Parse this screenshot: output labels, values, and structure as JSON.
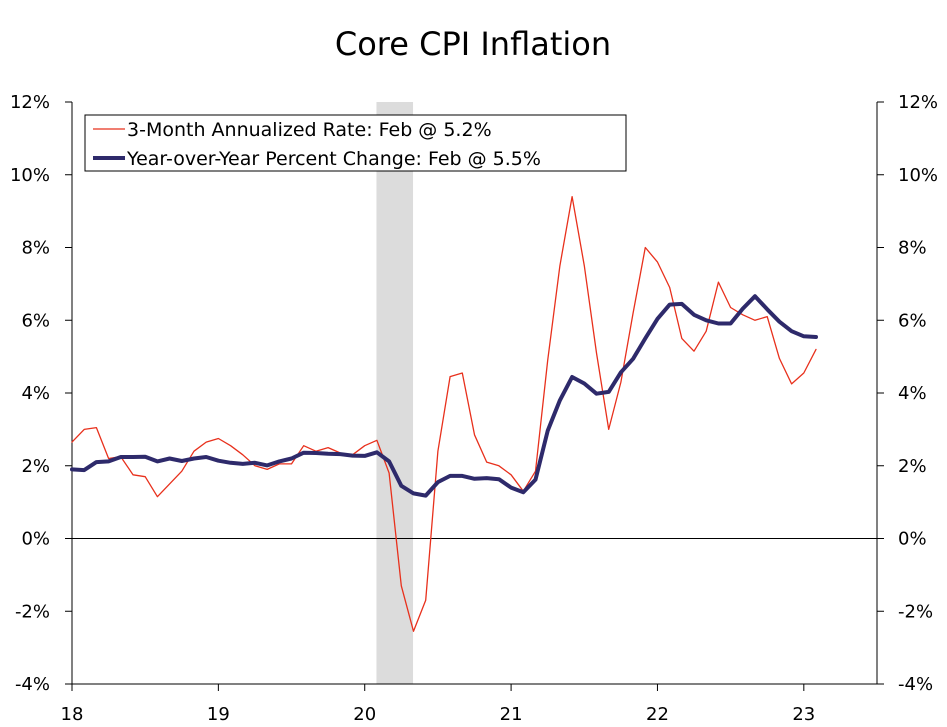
{
  "chart_data": {
    "type": "line",
    "title": "Core CPI Inflation",
    "x_start": {
      "year": 2018,
      "month": 1
    },
    "x_range_years": [
      2018,
      2023.5
    ],
    "x_tick_labels": [
      "18",
      "19",
      "20",
      "21",
      "22",
      "23"
    ],
    "x_tick_years": [
      2018,
      2019,
      2020,
      2021,
      2022,
      2023
    ],
    "ylim": [
      -4,
      12
    ],
    "y_ticks": [
      -4,
      -2,
      0,
      2,
      4,
      6,
      8,
      10,
      12
    ],
    "y_tick_labels": [
      "-4%",
      "-2%",
      "0%",
      "2%",
      "4%",
      "6%",
      "8%",
      "10%",
      "12%"
    ],
    "recession_shading": {
      "start": 2020.08,
      "end": 2020.33
    },
    "legend_position": "top-left",
    "colors": {
      "three_month": "#e8301c",
      "year_over_year": "#2e2a6b",
      "recession": "#dcdcdc",
      "zero_line": "#000000"
    },
    "series": [
      {
        "name": "3-Month Annualized Rate: Feb @ 5.2%",
        "style": "thin",
        "values": [
          2.65,
          3.0,
          3.05,
          2.2,
          2.25,
          1.75,
          1.7,
          1.15,
          1.5,
          1.85,
          2.4,
          2.65,
          2.75,
          2.55,
          2.3,
          2.0,
          1.9,
          2.05,
          2.05,
          2.55,
          2.4,
          2.5,
          2.35,
          2.3,
          2.55,
          2.7,
          1.8,
          -1.3,
          -2.55,
          -1.7,
          2.4,
          4.45,
          4.55,
          2.85,
          2.1,
          2.0,
          1.75,
          1.3,
          1.85,
          4.9,
          7.5,
          9.4,
          7.5,
          5.1,
          3.0,
          4.3,
          6.2,
          8.0,
          7.6,
          6.9,
          5.5,
          5.15,
          5.7,
          7.05,
          6.35,
          6.15,
          6.0,
          6.1,
          4.95,
          4.25,
          4.55,
          5.2
        ]
      },
      {
        "name": "Year-over-Year Percent Change: Feb @ 5.5%",
        "style": "thick",
        "values": [
          1.9,
          1.88,
          2.1,
          2.12,
          2.24,
          2.24,
          2.25,
          2.12,
          2.2,
          2.13,
          2.2,
          2.24,
          2.14,
          2.08,
          2.05,
          2.08,
          2.01,
          2.12,
          2.2,
          2.36,
          2.35,
          2.33,
          2.32,
          2.28,
          2.27,
          2.37,
          2.12,
          1.45,
          1.24,
          1.18,
          1.55,
          1.72,
          1.72,
          1.64,
          1.66,
          1.63,
          1.4,
          1.27,
          1.62,
          2.96,
          3.8,
          4.44,
          4.26,
          3.98,
          4.03,
          4.57,
          4.94,
          5.5,
          6.04,
          6.43,
          6.45,
          6.15,
          6.0,
          5.91,
          5.91,
          6.32,
          6.66,
          6.3,
          5.96,
          5.7,
          5.56,
          5.54
        ]
      }
    ]
  }
}
